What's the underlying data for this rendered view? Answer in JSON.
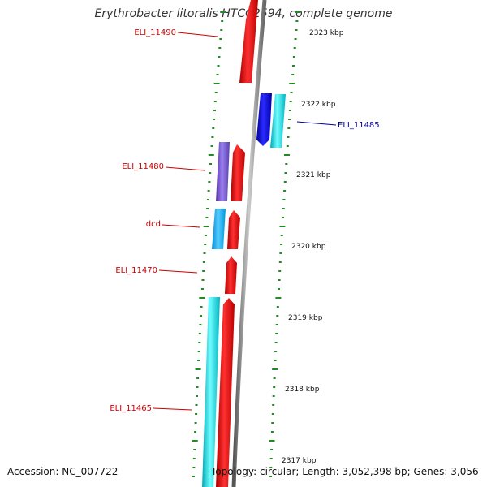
{
  "header": {
    "title": "Erythrobacter litoralis HTCC2594, complete genome"
  },
  "footer": {
    "accession": "Accession: NC_007722",
    "topology": "Topology: circular; Length: 3,052,398 bp; Genes: 3,056"
  },
  "scale": {
    "ticks": [
      {
        "label": "2323 kbp"
      },
      {
        "label": "2322 kbp"
      },
      {
        "label": "2321 kbp"
      },
      {
        "label": "2320 kbp"
      },
      {
        "label": "2319 kbp"
      },
      {
        "label": "2318 kbp"
      },
      {
        "label": "2317 kbp"
      }
    ]
  },
  "genes": [
    {
      "name": "ELI_11490",
      "strand": "reverse",
      "label_color": "#cc0000"
    },
    {
      "name": "ELI_11485",
      "strand": "forward",
      "label_color": "#000099"
    },
    {
      "name": "ELI_11480",
      "strand": "reverse",
      "label_color": "#cc0000"
    },
    {
      "name": "dcd",
      "strand": "reverse",
      "label_color": "#cc0000"
    },
    {
      "name": "ELI_11470",
      "strand": "reverse",
      "label_color": "#cc0000"
    },
    {
      "name": "ELI_11465",
      "strand": "reverse",
      "label_color": "#cc0000"
    }
  ],
  "colors": {
    "gene_reverse": "#ee0000",
    "gene_forward": "#0000dd",
    "cds_feature": "#00e5ee",
    "cds_feature_alt": "#7755cc",
    "backbone": "#888888",
    "tick": "#228b22"
  }
}
